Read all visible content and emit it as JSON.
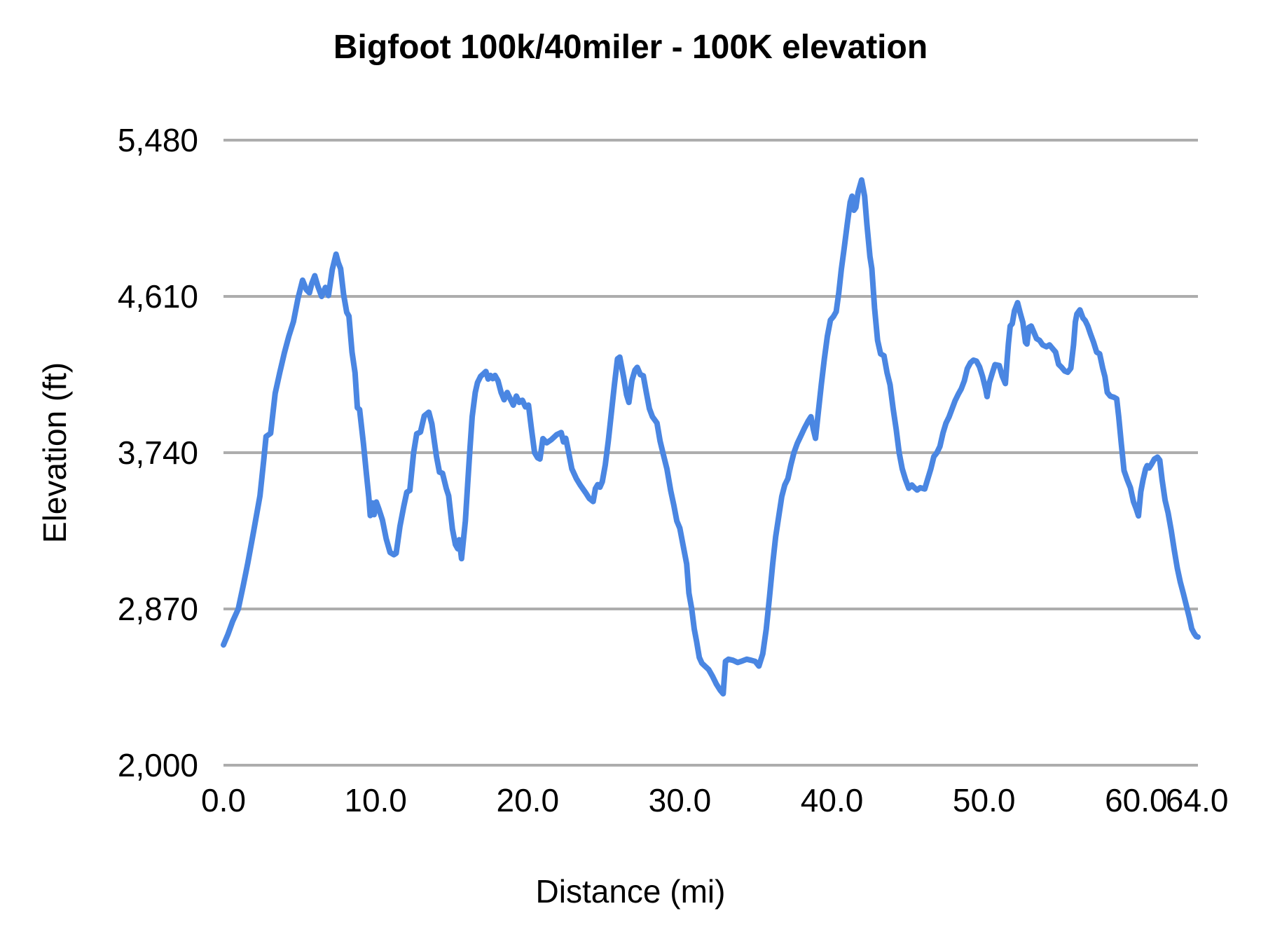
{
  "title": "Bigfoot 100k/40miler - 100K elevation",
  "y_axis": {
    "title": "Elevation (ft)",
    "ticks": [
      {
        "value": 2000,
        "label": "2,000"
      },
      {
        "value": 2870,
        "label": "2,870"
      },
      {
        "value": 3740,
        "label": "3,740"
      },
      {
        "value": 4610,
        "label": "4,610"
      },
      {
        "value": 5480,
        "label": "5,480"
      }
    ]
  },
  "x_axis": {
    "title": "Distance (mi)",
    "ticks": [
      {
        "value": 0,
        "label": "0.0"
      },
      {
        "value": 10,
        "label": "10.0"
      },
      {
        "value": 20,
        "label": "20.0"
      },
      {
        "value": 30,
        "label": "30.0"
      },
      {
        "value": 40,
        "label": "40.0"
      },
      {
        "value": 50,
        "label": "50.0"
      },
      {
        "value": 60,
        "label": "60.0"
      },
      {
        "value": 64,
        "label": "64.0"
      }
    ]
  },
  "colors": {
    "line": "#4a86e2",
    "gridline": "#adadad",
    "text": "#000000",
    "background": "#ffffff"
  },
  "chart_data": {
    "type": "line",
    "title": "Bigfoot 100k/40miler - 100K elevation",
    "xlabel": "Distance (mi)",
    "ylabel": "Elevation (ft)",
    "x_range": [
      0,
      64.06
    ],
    "y_range": [
      2000,
      5480
    ],
    "grid": "horizontal gridlines only",
    "legend": "none",
    "series": [
      {
        "name": "100K elevation",
        "x": [
          0,
          0.3,
          0.6,
          0.97,
          1.3,
          1.6,
          2,
          2.4,
          2.65,
          2.8,
          3.1,
          3.4,
          3.7,
          4,
          4.3,
          4.6,
          4.9,
          5.2,
          5.45,
          5.65,
          5.8,
          6,
          6.2,
          6.45,
          6.7,
          6.9,
          7.15,
          7.4,
          7.55,
          7.7,
          7.9,
          8.1,
          8.25,
          8.45,
          8.65,
          8.8,
          8.95,
          9.2,
          9.4,
          9.55,
          9.65,
          9.8,
          9.9,
          10.05,
          10.2,
          10.45,
          10.7,
          10.95,
          11.2,
          11.35,
          11.6,
          11.85,
          12.05,
          12.25,
          12.5,
          12.7,
          12.95,
          13.2,
          13.5,
          13.7,
          14,
          14.2,
          14.4,
          14.65,
          14.8,
          15.05,
          15.25,
          15.4,
          15.5,
          15.65,
          15.9,
          16.05,
          16.2,
          16.35,
          16.55,
          16.7,
          16.9,
          17.1,
          17.25,
          17.4,
          17.55,
          17.7,
          17.85,
          18.05,
          18.25,
          18.45,
          18.65,
          18.85,
          19.05,
          19.25,
          19.45,
          19.65,
          19.85,
          20.05,
          20.25,
          20.45,
          20.65,
          20.8,
          21,
          21.25,
          21.55,
          21.9,
          22.2,
          22.35,
          22.5,
          22.65,
          22.9,
          23.2,
          23.45,
          23.8,
          24.05,
          24.3,
          24.45,
          24.6,
          24.75,
          24.9,
          25.1,
          25.3,
          25.5,
          25.7,
          25.9,
          26.05,
          26.3,
          26.5,
          26.65,
          26.85,
          27.05,
          27.2,
          27.4,
          27.6,
          27.8,
          28,
          28.2,
          28.5,
          28.7,
          28.95,
          29.15,
          29.4,
          29.6,
          29.8,
          30,
          30.2,
          30.45,
          30.6,
          30.78,
          30.95,
          31.1,
          31.28,
          31.45,
          31.65,
          31.9,
          32.15,
          32.4,
          32.65,
          32.85,
          33,
          33.2,
          33.5,
          33.8,
          34.1,
          34.4,
          34.7,
          34.95,
          35.2,
          35.45,
          35.68,
          35.9,
          36.1,
          36.3,
          36.5,
          36.7,
          36.9,
          37.1,
          37.3,
          37.5,
          37.72,
          37.95,
          38.2,
          38.45,
          38.62,
          38.78,
          38.92,
          39.1,
          39.3,
          39.5,
          39.7,
          39.9,
          40.1,
          40.28,
          40.45,
          40.62,
          40.8,
          41,
          41.2,
          41.32,
          41.45,
          41.57,
          41.72,
          41.95,
          42.15,
          42.3,
          42.5,
          42.62,
          42.8,
          43,
          43.2,
          43.42,
          43.62,
          43.82,
          44.02,
          44.22,
          44.42,
          44.62,
          44.82,
          45.05,
          45.25,
          45.42,
          45.6,
          45.8,
          46.1,
          46.3,
          46.5,
          46.7,
          46.9,
          47.1,
          47.3,
          47.5,
          47.7,
          47.9,
          48.1,
          48.3,
          48.5,
          48.7,
          48.9,
          49.1,
          49.3,
          49.5,
          49.7,
          49.9,
          50.1,
          50.2,
          50.35,
          50.55,
          50.72,
          51,
          51.2,
          51.4,
          51.6,
          51.72,
          51.85,
          52,
          52.2,
          52.4,
          52.55,
          52.72,
          52.82,
          52.95,
          53.1,
          53.28,
          53.45,
          53.65,
          53.85,
          54.1,
          54.3,
          54.5,
          54.7,
          54.9,
          55.1,
          55.3,
          55.5,
          55.7,
          55.88,
          56,
          56.1,
          56.3,
          56.5,
          56.65,
          56.82,
          57,
          57.2,
          57.4,
          57.6,
          57.8,
          57.95,
          58.1,
          58.3,
          58.55,
          58.72,
          58.85,
          59.02,
          59.2,
          59.42,
          59.62,
          59.82,
          60,
          60.15,
          60.3,
          60.45,
          60.62,
          60.72,
          60.85,
          61,
          61.2,
          61.4,
          61.55,
          61.7,
          61.9,
          62.1,
          62.3,
          62.5,
          62.7,
          62.9,
          63.1,
          63.3,
          63.5,
          63.65,
          63.8,
          63.95,
          64.06
        ],
        "elevation_ft": [
          2670,
          2730,
          2800,
          2870,
          3000,
          3125,
          3310,
          3500,
          3700,
          3830,
          3848,
          4070,
          4185,
          4295,
          4390,
          4470,
          4600,
          4700,
          4648,
          4630,
          4680,
          4725,
          4668,
          4610,
          4660,
          4615,
          4760,
          4845,
          4798,
          4765,
          4620,
          4522,
          4500,
          4300,
          4185,
          3990,
          3980,
          3790,
          3620,
          3495,
          3390,
          3460,
          3395,
          3465,
          3430,
          3365,
          3260,
          3185,
          3172,
          3180,
          3330,
          3440,
          3520,
          3530,
          3740,
          3845,
          3855,
          3945,
          3965,
          3900,
          3720,
          3632,
          3625,
          3540,
          3500,
          3315,
          3228,
          3205,
          3255,
          3150,
          3360,
          3560,
          3760,
          3940,
          4075,
          4130,
          4165,
          4180,
          4192,
          4150,
          4170,
          4152,
          4170,
          4140,
          4075,
          4035,
          4075,
          4040,
          4005,
          4055,
          4020,
          4032,
          3995,
          4005,
          3870,
          3740,
          3712,
          3705,
          3818,
          3795,
          3812,
          3840,
          3852,
          3800,
          3820,
          3760,
          3650,
          3595,
          3560,
          3518,
          3485,
          3468,
          3540,
          3562,
          3548,
          3578,
          3672,
          3808,
          3962,
          4120,
          4262,
          4272,
          4162,
          4062,
          4020,
          4142,
          4200,
          4215,
          4175,
          4168,
          4075,
          3985,
          3940,
          3905,
          3805,
          3718,
          3650,
          3528,
          3450,
          3360,
          3320,
          3230,
          3120,
          2958,
          2870,
          2758,
          2690,
          2600,
          2568,
          2552,
          2532,
          2495,
          2452,
          2418,
          2398,
          2578,
          2590,
          2584,
          2572,
          2580,
          2590,
          2584,
          2578,
          2552,
          2620,
          2758,
          2940,
          3118,
          3272,
          3385,
          3495,
          3560,
          3595,
          3672,
          3740,
          3792,
          3832,
          3878,
          3918,
          3940,
          3868,
          3820,
          3962,
          4120,
          4262,
          4388,
          4478,
          4498,
          4525,
          4630,
          4762,
          4875,
          5010,
          5135,
          5168,
          5090,
          5105,
          5190,
          5258,
          5168,
          5010,
          4832,
          4765,
          4545,
          4365,
          4290,
          4280,
          4185,
          4118,
          3985,
          3872,
          3740,
          3650,
          3595,
          3542,
          3560,
          3545,
          3532,
          3545,
          3538,
          3595,
          3650,
          3718,
          3740,
          3775,
          3850,
          3905,
          3940,
          3985,
          4030,
          4065,
          4095,
          4140,
          4208,
          4240,
          4255,
          4250,
          4218,
          4165,
          4095,
          4052,
          4130,
          4185,
          4230,
          4225,
          4165,
          4125,
          4345,
          4445,
          4458,
          4530,
          4575,
          4510,
          4465,
          4355,
          4345,
          4438,
          4445,
          4410,
          4375,
          4365,
          4340,
          4330,
          4340,
          4320,
          4300,
          4232,
          4215,
          4195,
          4188,
          4210,
          4340,
          4468,
          4512,
          4535,
          4490,
          4475,
          4445,
          4400,
          4355,
          4300,
          4290,
          4210,
          4162,
          4075,
          4055,
          4048,
          4040,
          3940,
          3790,
          3640,
          3588,
          3545,
          3468,
          3428,
          3388,
          3522,
          3588,
          3650,
          3668,
          3655,
          3675,
          3705,
          3715,
          3698,
          3590,
          3475,
          3405,
          3308,
          3200,
          3098,
          3020,
          2955,
          2888,
          2820,
          2760,
          2735,
          2717,
          2714
        ]
      }
    ]
  }
}
